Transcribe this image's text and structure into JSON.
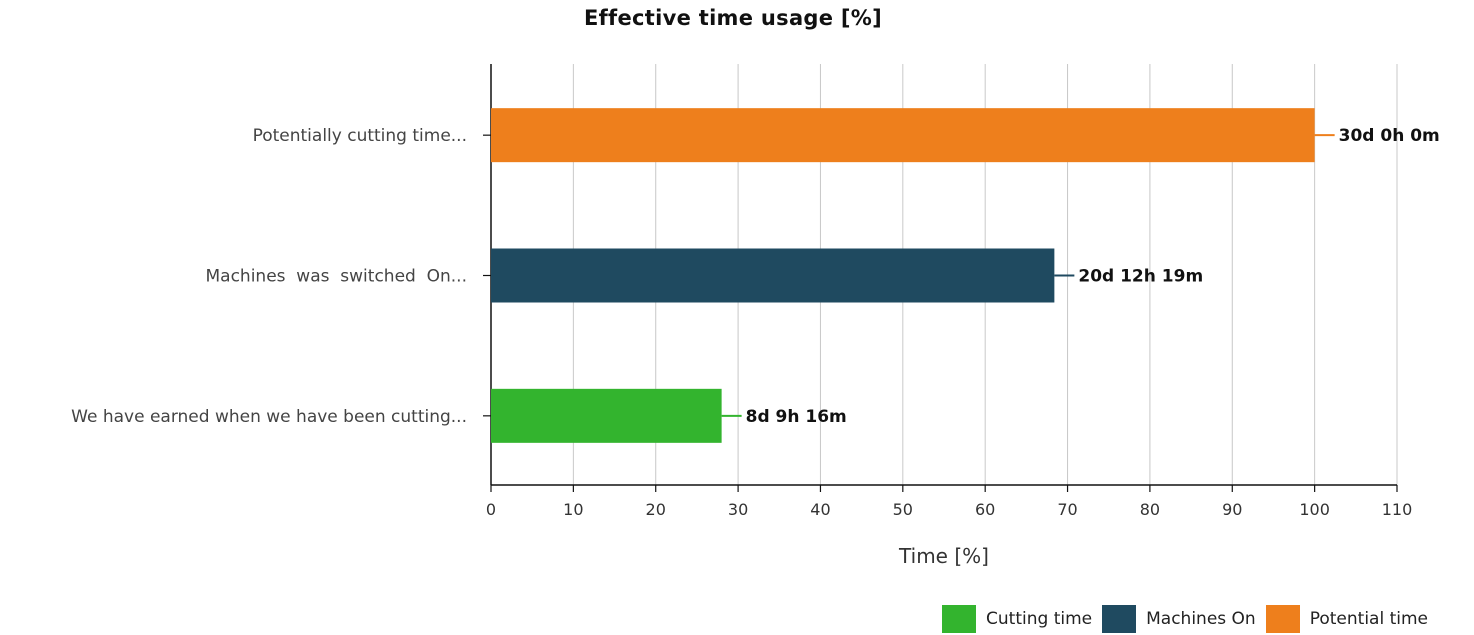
{
  "chart_data": {
    "type": "bar",
    "orientation": "horizontal",
    "title": "Effective time usage  [%]",
    "xlabel": "Time [%]",
    "ylabel": "",
    "xlim": [
      0,
      110
    ],
    "xticks": [
      0,
      10,
      20,
      30,
      40,
      50,
      60,
      70,
      80,
      90,
      100,
      110
    ],
    "grid": true,
    "legend_position": "bottom-right",
    "categories": [
      "Potentially cutting time...",
      "Machines  was  switched  On...",
      "We have earned when we have been cutting..."
    ],
    "series": [
      {
        "name": "Potential time",
        "values": [
          100,
          null,
          null
        ],
        "color": "#ee7f1c",
        "labels": [
          "30d 0h 0m",
          null,
          null
        ]
      },
      {
        "name": "Machines On",
        "values": [
          null,
          68.4,
          null
        ],
        "color": "#1f4a60",
        "labels": [
          null,
          "20d 12h 19m",
          null
        ]
      },
      {
        "name": "Cutting time",
        "values": [
          null,
          null,
          28
        ],
        "color": "#33b42e",
        "labels": [
          null,
          null,
          "8d 9h 16m"
        ]
      }
    ],
    "legend": [
      {
        "name": "Cutting time",
        "color": "#33b42e"
      },
      {
        "name": "Machines On",
        "color": "#1f4a60"
      },
      {
        "name": "Potential time",
        "color": "#ee7f1c"
      }
    ]
  }
}
